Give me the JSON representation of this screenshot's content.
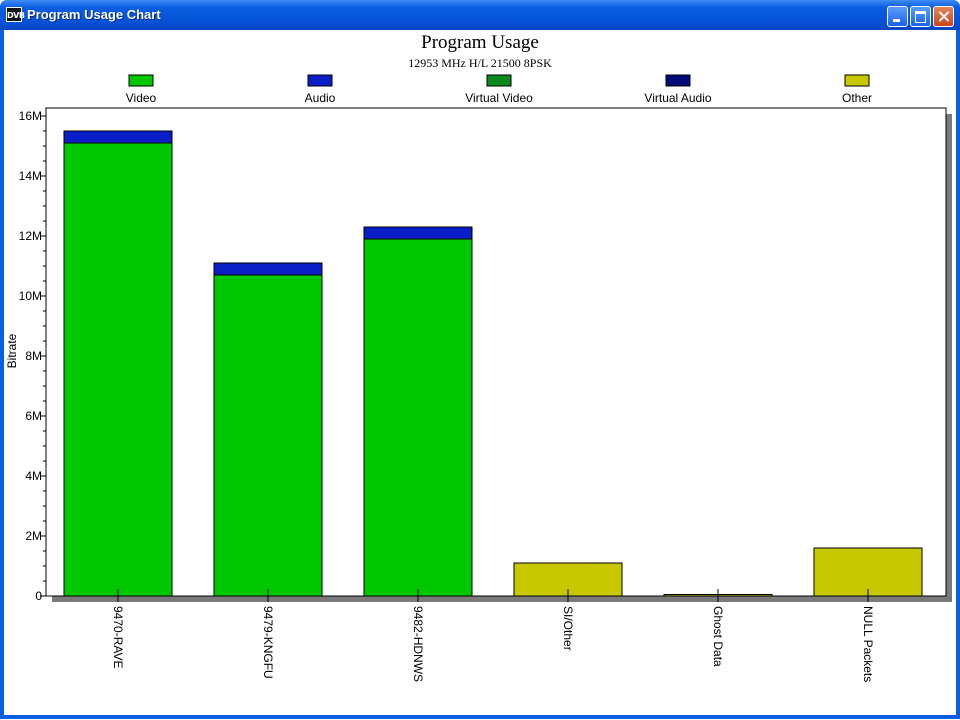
{
  "window": {
    "title": "Program Usage Chart",
    "icon_label": "DVB"
  },
  "colors": {
    "video": "#00c800",
    "audio": "#0a1ec8",
    "virtual_video": "#0a8a1e",
    "virtual_audio": "#000a78",
    "other": "#c8c800"
  },
  "chart_data": {
    "type": "bar",
    "title": "Program Usage",
    "subtitle": "12953 MHz H/L 21500 8PSK",
    "ylabel": "Bitrate",
    "xlabel": "",
    "ylim": [
      0,
      16000000
    ],
    "yticks": [
      {
        "value": 0,
        "label": "0"
      },
      {
        "value": 2000000,
        "label": "2M"
      },
      {
        "value": 4000000,
        "label": "4M"
      },
      {
        "value": 6000000,
        "label": "6M"
      },
      {
        "value": 8000000,
        "label": "8M"
      },
      {
        "value": 10000000,
        "label": "10M"
      },
      {
        "value": 12000000,
        "label": "12M"
      },
      {
        "value": 14000000,
        "label": "14M"
      },
      {
        "value": 16000000,
        "label": "16M"
      }
    ],
    "categories": [
      "9470-RAVE",
      "9479-KNGFU",
      "9482-HDNWS",
      "SI/Other",
      "Ghost Data",
      "NULL Packets"
    ],
    "stacked": true,
    "legend_position": "top",
    "series": [
      {
        "name": "Video",
        "color_key": "video",
        "values": [
          15100000,
          10700000,
          11900000,
          0,
          0,
          0
        ]
      },
      {
        "name": "Audio",
        "color_key": "audio",
        "values": [
          400000,
          400000,
          400000,
          0,
          0,
          0
        ]
      },
      {
        "name": "Virtual Video",
        "color_key": "virtual_video",
        "values": [
          0,
          0,
          0,
          0,
          0,
          0
        ]
      },
      {
        "name": "Virtual Audio",
        "color_key": "virtual_audio",
        "values": [
          0,
          0,
          0,
          0,
          0,
          0
        ]
      },
      {
        "name": "Other",
        "color_key": "other",
        "values": [
          0,
          0,
          0,
          1100000,
          50000,
          1600000
        ]
      }
    ],
    "grid": false
  }
}
